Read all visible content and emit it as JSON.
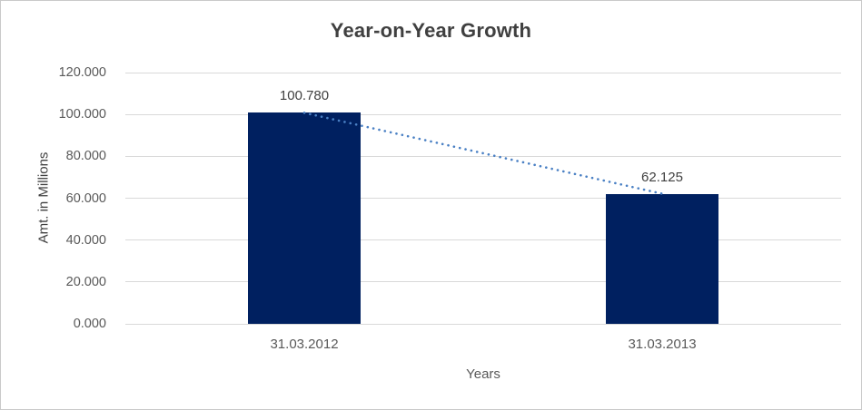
{
  "chart_data": {
    "type": "bar",
    "title": "Year-on-Year Growth",
    "xlabel": "Years",
    "ylabel": "Amt. in Millions",
    "categories": [
      "31.03.2012",
      "31.03.2013"
    ],
    "values": [
      100.78,
      62.125
    ],
    "data_labels": [
      "100.780",
      "62.125"
    ],
    "ylim": [
      0,
      120
    ],
    "yticks": [
      {
        "value": 0,
        "label": "0.000"
      },
      {
        "value": 20,
        "label": "20.000"
      },
      {
        "value": 40,
        "label": "40.000"
      },
      {
        "value": 60,
        "label": "60.000"
      },
      {
        "value": 80,
        "label": "80.000"
      },
      {
        "value": 100,
        "label": "100.000"
      },
      {
        "value": 120,
        "label": "120.000"
      }
    ],
    "grid": "horizontal",
    "legend": "none",
    "colors": {
      "bar": "#002060",
      "trendline": "#4a80c4",
      "gridline": "#d9d9d9",
      "axis_line": "#bfbfbf",
      "title_text": "#404040",
      "tick_text": "#595959"
    },
    "trendline": {
      "style": "dotted",
      "from_value": 100.78,
      "to_value": 62.125
    }
  }
}
